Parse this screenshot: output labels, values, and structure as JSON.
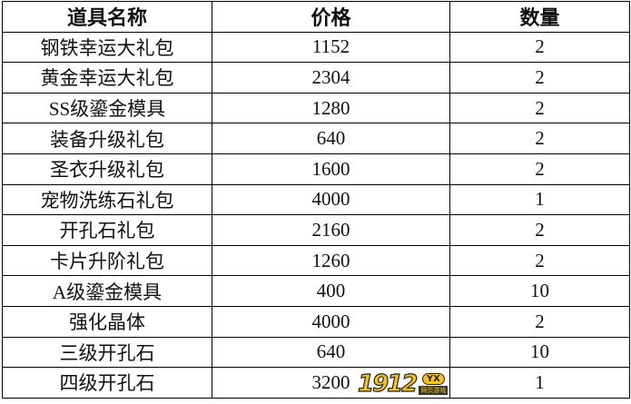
{
  "headers": [
    "道具名称",
    "价格",
    "数量"
  ],
  "rows": [
    [
      "钢铁幸运大礼包",
      "1152",
      "2"
    ],
    [
      "黄金幸运大礼包",
      "2304",
      "2"
    ],
    [
      "SS级鎏金模具",
      "1280",
      "2"
    ],
    [
      "装备升级礼包",
      "640",
      "2"
    ],
    [
      "圣衣升级礼包",
      "1600",
      "2"
    ],
    [
      "宠物洗练石礼包",
      "4000",
      "1"
    ],
    [
      "开孔石礼包",
      "2160",
      "2"
    ],
    [
      "卡片升阶礼包",
      "1260",
      "2"
    ],
    [
      "A级鎏金模具",
      "400",
      "10"
    ],
    [
      "强化晶体",
      "4000",
      "2"
    ],
    [
      "三级开孔石",
      "640",
      "10"
    ],
    [
      "四级开孔石",
      "3200",
      "1"
    ]
  ],
  "watermark": {
    "number": "1912",
    "badge": "YX",
    "sub": "网页游戏"
  }
}
